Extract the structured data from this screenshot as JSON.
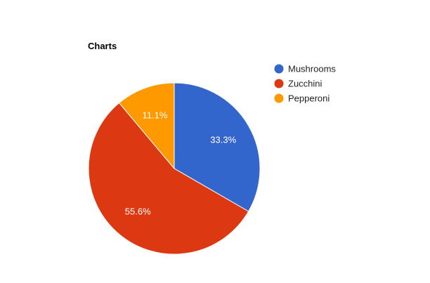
{
  "chart_data": {
    "type": "pie",
    "title": "Charts",
    "legend_position": "right",
    "slices": [
      {
        "label": "Mushrooms",
        "value": 3,
        "percent_label": "33.3%",
        "color": "#3366cc"
      },
      {
        "label": "Zucchini",
        "value": 5,
        "percent_label": "55.6%",
        "color": "#dc3912"
      },
      {
        "label": "Pepperoni",
        "value": 1,
        "percent_label": "11.1%",
        "color": "#ff9900"
      }
    ]
  }
}
